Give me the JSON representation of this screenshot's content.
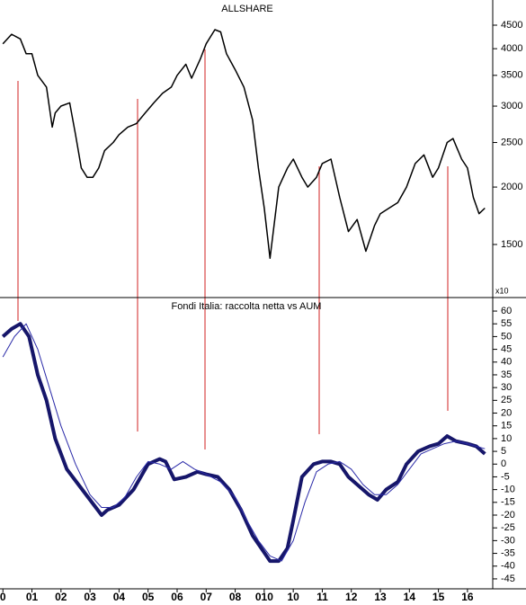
{
  "chart_data": [
    {
      "type": "line",
      "title": "ALLSHARE",
      "annotation": "x10",
      "log_scale": true,
      "color": "#000000",
      "xlim": [
        1999.9,
        2016.87
      ],
      "ylim": [
        1155,
        5105
      ],
      "yticks": [
        1500,
        2000,
        2500,
        3000,
        3500,
        4000,
        4500
      ],
      "x": [
        2000.0,
        2000.3,
        2000.6,
        2000.8,
        2001.0,
        2001.2,
        2001.5,
        2001.7,
        2001.8,
        2002.0,
        2002.3,
        2002.5,
        2002.7,
        2002.9,
        2003.1,
        2003.3,
        2003.5,
        2003.8,
        2004.0,
        2004.3,
        2004.6,
        2004.9,
        2005.2,
        2005.5,
        2005.8,
        2006.0,
        2006.3,
        2006.5,
        2006.8,
        2007.0,
        2007.3,
        2007.5,
        2007.7,
        2008.0,
        2008.3,
        2008.6,
        2008.8,
        2009.0,
        2009.2,
        2009.5,
        2009.8,
        2010.0,
        2010.3,
        2010.5,
        2010.8,
        2011.0,
        2011.3,
        2011.6,
        2011.9,
        2012.2,
        2012.5,
        2012.8,
        2013.0,
        2013.3,
        2013.6,
        2013.9,
        2014.2,
        2014.5,
        2014.8,
        2015.0,
        2015.3,
        2015.5,
        2015.8,
        2016.0,
        2016.2,
        2016.4,
        2016.6
      ],
      "values": [
        4100,
        4300,
        4200,
        3900,
        3900,
        3500,
        3300,
        2700,
        2900,
        3000,
        3050,
        2600,
        2200,
        2100,
        2100,
        2200,
        2400,
        2500,
        2600,
        2700,
        2750,
        2900,
        3050,
        3200,
        3300,
        3500,
        3700,
        3450,
        3800,
        4100,
        4400,
        4350,
        3900,
        3600,
        3300,
        2800,
        2200,
        1800,
        1400,
        2000,
        2200,
        2300,
        2100,
        2000,
        2100,
        2250,
        2300,
        1900,
        1600,
        1700,
        1450,
        1650,
        1750,
        1800,
        1850,
        2000,
        2250,
        2350,
        2100,
        2200,
        2500,
        2550,
        2300,
        2200,
        1900,
        1750,
        1800
      ]
    },
    {
      "type": "line",
      "title": "Fondi Italia: raccolta netta vs AUM",
      "xlim": [
        1999.9,
        2016.87
      ],
      "ylim": [
        -48.9,
        65.3
      ],
      "yticks": [
        -45,
        -40,
        -35,
        -30,
        -25,
        -20,
        -15,
        -10,
        -5,
        0,
        5,
        10,
        15,
        20,
        25,
        30,
        35,
        40,
        45,
        50,
        55,
        60
      ],
      "xticks": [
        {
          "value": 2000,
          "label": "0"
        },
        {
          "value": 2001,
          "label": "01"
        },
        {
          "value": 2002,
          "label": "02"
        },
        {
          "value": 2003,
          "label": "03"
        },
        {
          "value": 2004,
          "label": "04"
        },
        {
          "value": 2005,
          "label": "05"
        },
        {
          "value": 2006,
          "label": "06"
        },
        {
          "value": 2007,
          "label": "07"
        },
        {
          "value": 2008,
          "label": "08"
        },
        {
          "value": 2009,
          "label": "010"
        },
        {
          "value": 2010,
          "label": "10"
        },
        {
          "value": 2011,
          "label": "11"
        },
        {
          "value": 2012,
          "label": "12"
        },
        {
          "value": 2013,
          "label": "13"
        },
        {
          "value": 2014,
          "label": "14"
        },
        {
          "value": 2015,
          "label": "15"
        },
        {
          "value": 2016,
          "label": "16"
        }
      ],
      "series": [
        {
          "color": "#16166a",
          "width": 4,
          "x": [
            2000.0,
            2000.3,
            2000.6,
            2000.9,
            2001.2,
            2001.5,
            2001.8,
            2002.2,
            2002.6,
            2003.0,
            2003.4,
            2003.6,
            2004.0,
            2004.5,
            2005.0,
            2005.4,
            2005.6,
            2005.9,
            2006.3,
            2006.7,
            2007.0,
            2007.4,
            2007.8,
            2008.2,
            2008.6,
            2008.9,
            2009.2,
            2009.5,
            2009.8,
            2010.0,
            2010.3,
            2010.7,
            2011.0,
            2011.3,
            2011.6,
            2011.9,
            2012.2,
            2012.6,
            2012.9,
            2013.2,
            2013.6,
            2013.9,
            2014.3,
            2014.7,
            2015.0,
            2015.3,
            2015.6,
            2016.0,
            2016.3,
            2016.6
          ],
          "values": [
            50,
            53,
            55,
            50,
            35,
            25,
            10,
            -2,
            -8,
            -14,
            -20,
            -18,
            -16,
            -10,
            0,
            2,
            1,
            -6,
            -5,
            -3,
            -4,
            -5,
            -10,
            -18,
            -28,
            -33,
            -38,
            -38,
            -33,
            -22,
            -5,
            0,
            1,
            1,
            0,
            -5,
            -8,
            -12,
            -14,
            -10,
            -7,
            0,
            5,
            7,
            8,
            11,
            9,
            8,
            7,
            4
          ]
        },
        {
          "color": "#2a2aa8",
          "width": 1,
          "x": [
            2000.0,
            2000.4,
            2000.8,
            2001.2,
            2001.6,
            2002.0,
            2002.5,
            2003.0,
            2003.4,
            2003.8,
            2004.2,
            2004.6,
            2005.0,
            2005.4,
            2005.8,
            2006.2,
            2006.6,
            2007.0,
            2007.5,
            2008.0,
            2008.4,
            2008.8,
            2009.2,
            2009.6,
            2010.0,
            2010.4,
            2010.8,
            2011.2,
            2011.6,
            2012.0,
            2012.4,
            2012.8,
            2013.2,
            2013.6,
            2014.0,
            2014.4,
            2014.8,
            2015.2,
            2015.6,
            2016.0,
            2016.6
          ],
          "values": [
            42,
            50,
            55,
            45,
            30,
            15,
            0,
            -12,
            -17,
            -17,
            -13,
            -5,
            1,
            0,
            -2,
            1,
            -2,
            -4,
            -7,
            -13,
            -22,
            -30,
            -36,
            -38,
            -30,
            -15,
            -3,
            0,
            1,
            -2,
            -8,
            -12,
            -12,
            -8,
            -2,
            4,
            6,
            8,
            9,
            8,
            6
          ]
        }
      ]
    }
  ]
}
